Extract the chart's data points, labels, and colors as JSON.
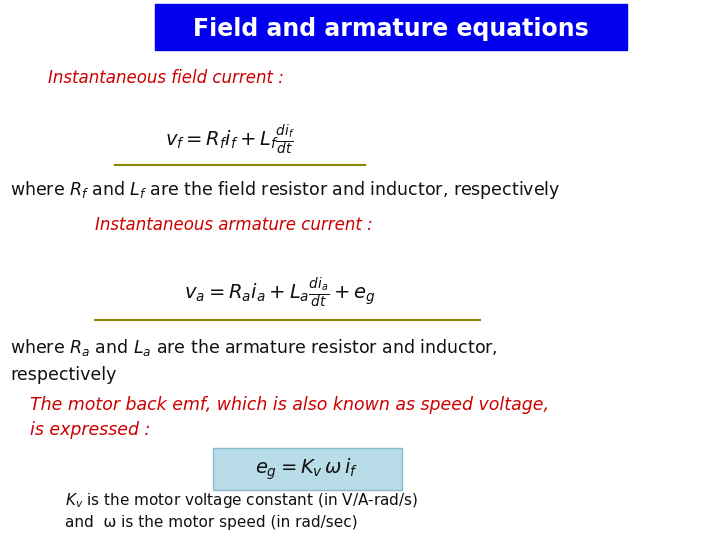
{
  "title": "Field and armature equations",
  "title_bg_color": "#0000EE",
  "title_text_color": "#FFFFFF",
  "bg_color": "#FFFFFF",
  "red_color": "#CC0000",
  "black_color": "#111111",
  "olive_line_color": "#888800",
  "cyan_box_color": "#B8DDE8",
  "line1_red": "Instantaneous field current :",
  "line2_black_1": "where R",
  "line2_black_2": "f",
  "line2_black_3": " and L",
  "line2_black_4": "f",
  "line2_black_5": " are the field resistor and inductor, respectively",
  "line3_red": "Instantaneous armature current :",
  "line4_black_1": "where R",
  "line4_black_2": "a",
  "line4_black_3": " and L",
  "line4_black_4": "a",
  "line4_black_5": " are the armature resistor and inductor,",
  "line4_black_6": "respectively",
  "line5_red_1": "The motor back emf, which is also known as speed voltage,",
  "line5_red_2": "is expressed :",
  "eq_box_text": "e",
  "kv_line": " is the motor voltage constant (in V/A-rad/s)",
  "omega_line": "and  ω is the motor speed (in rad/sec)"
}
